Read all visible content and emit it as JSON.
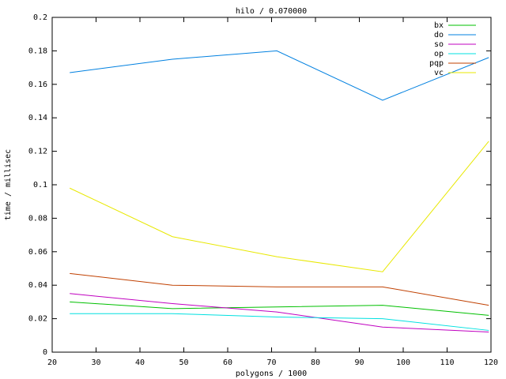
{
  "chart_data": {
    "type": "line",
    "title": "hilo / 0.070000",
    "x_label": "polygons / 1000",
    "y_label": "time / millisec",
    "x": [
      24,
      47.4,
      71.2,
      95.3,
      119.5
    ],
    "xlim": [
      20,
      120
    ],
    "xticks": [
      20,
      30,
      40,
      50,
      60,
      70,
      80,
      90,
      100,
      110,
      120
    ],
    "ylim": [
      0,
      0.2
    ],
    "yticks": [
      0,
      0.02,
      0.04,
      0.06,
      0.08,
      0.1,
      0.12,
      0.14,
      0.16,
      0.18,
      0.2
    ],
    "legend": "upper-right",
    "series": [
      {
        "name": "bx",
        "color": "#00c000",
        "values": [
          0.03,
          0.026,
          0.027,
          0.028,
          0.022
        ]
      },
      {
        "name": "do",
        "color": "#0080e0",
        "values": [
          0.167,
          0.175,
          0.18,
          0.1505,
          0.176
        ]
      },
      {
        "name": "so",
        "color": "#c000c0",
        "values": [
          0.035,
          0.029,
          0.024,
          0.015,
          0.012
        ]
      },
      {
        "name": "op",
        "color": "#00e0e0",
        "values": [
          0.023,
          0.023,
          0.021,
          0.02,
          0.013
        ]
      },
      {
        "name": "pqp",
        "color": "#c04000",
        "values": [
          0.047,
          0.04,
          0.039,
          0.039,
          0.028
        ]
      },
      {
        "name": "vc",
        "color": "#e8e800",
        "values": [
          0.098,
          0.069,
          0.057,
          0.048,
          0.126
        ]
      }
    ]
  }
}
